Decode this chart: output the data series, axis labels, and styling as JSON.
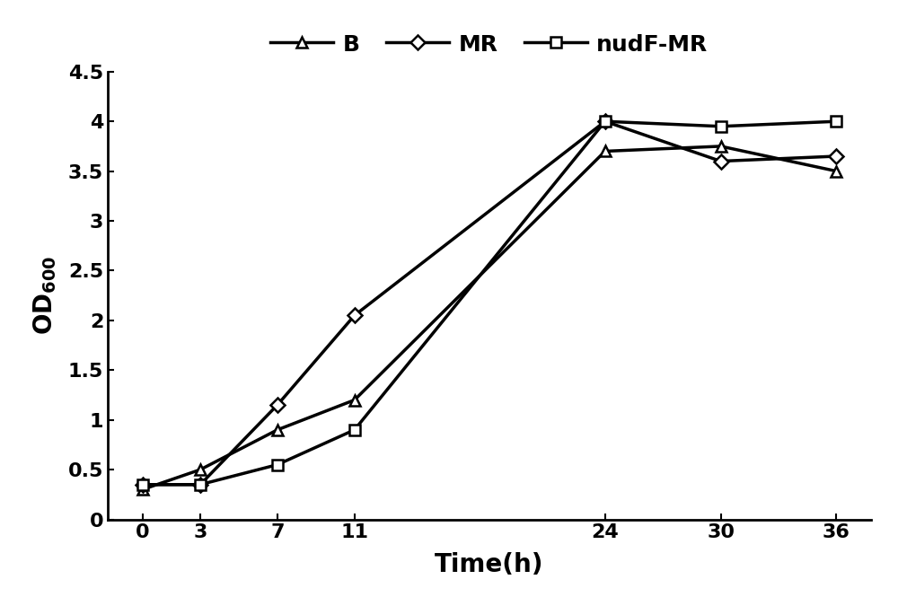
{
  "x": [
    0,
    3,
    7,
    11,
    24,
    30,
    36
  ],
  "B": [
    0.3,
    0.5,
    0.9,
    1.2,
    3.7,
    3.75,
    3.5
  ],
  "MR": [
    0.35,
    0.35,
    1.15,
    2.05,
    4.0,
    3.6,
    3.65
  ],
  "nudF_MR": [
    0.35,
    0.35,
    0.55,
    0.9,
    4.0,
    3.95,
    4.0
  ],
  "xlabel": "Time(h)",
  "ylabel": "OD_{600}",
  "ylim": [
    0,
    4.5
  ],
  "yticks": [
    0,
    0.5,
    1.0,
    1.5,
    2.0,
    2.5,
    3.0,
    3.5,
    4.0,
    4.5
  ],
  "ytick_labels": [
    "0",
    "0.5",
    "1",
    "1.5",
    "2",
    "2.5",
    "3",
    "3.5",
    "4",
    "4.5"
  ],
  "xticks": [
    0,
    3,
    7,
    11,
    24,
    30,
    36
  ],
  "xtick_labels": [
    "0",
    "3",
    "7",
    "11",
    "24",
    "30",
    "36"
  ],
  "legend_labels": [
    "B",
    "MR",
    "nudF-MR"
  ],
  "line_color": "#000000",
  "linewidth": 2.5,
  "markersize": 9,
  "marker_edge_width": 1.8,
  "background_color": "#ffffff",
  "tick_fontsize": 16,
  "label_fontsize": 20,
  "legend_fontsize": 18,
  "spine_linewidth": 2.0
}
